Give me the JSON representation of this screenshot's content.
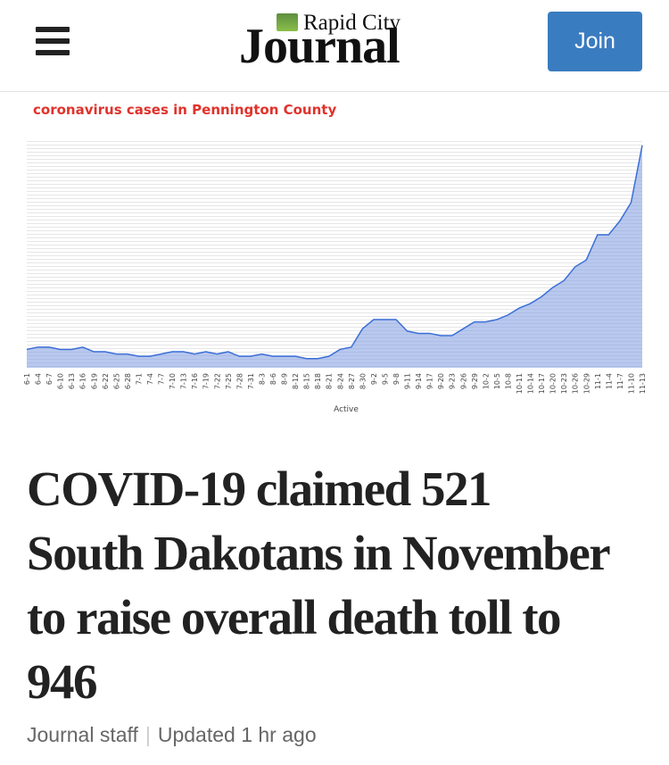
{
  "header": {
    "logo_small": "Rapid City",
    "logo_large": "Journal",
    "join": "Join"
  },
  "chart_data": {
    "type": "area",
    "title": "coronavirus cases in Pennington County",
    "xlabel": "Active",
    "color": "#7d9be0",
    "categories": [
      "6-1",
      "6-4",
      "6-7",
      "6-10",
      "6-13",
      "6-16",
      "6-19",
      "6-22",
      "6-25",
      "6-28",
      "7-1",
      "7-4",
      "7-7",
      "7-10",
      "7-13",
      "7-16",
      "7-19",
      "7-22",
      "7-25",
      "7-28",
      "7-31",
      "8-3",
      "8-6",
      "8-9",
      "8-12",
      "8-15",
      "8-18",
      "8-21",
      "8-24",
      "8-27",
      "8-30",
      "9-2",
      "9-5",
      "9-8",
      "9-11",
      "9-14",
      "9-17",
      "9-20",
      "9-23",
      "9-26",
      "9-29",
      "10-2",
      "10-5",
      "10-8",
      "10-11",
      "10-14",
      "10-17",
      "10-20",
      "10-23",
      "10-26",
      "10-29",
      "11-1",
      "11-4",
      "11-7",
      "11-10",
      "11-13"
    ],
    "values": [
      8,
      9,
      9,
      8,
      8,
      9,
      7,
      7,
      6,
      6,
      5,
      5,
      6,
      7,
      7,
      6,
      7,
      6,
      7,
      5,
      5,
      6,
      5,
      5,
      5,
      4,
      4,
      5,
      8,
      9,
      17,
      21,
      21,
      21,
      16,
      15,
      15,
      14,
      14,
      17,
      20,
      20,
      21,
      23,
      26,
      28,
      31,
      35,
      38,
      44,
      47,
      58,
      58,
      64,
      72,
      97
    ],
    "ylim": [
      0,
      100
    ]
  },
  "article": {
    "headline": "COVID-19 claimed 521 South Dakotans in November to raise overall death toll to 946",
    "author": "Journal staff",
    "updated": "Updated 1 hr ago"
  }
}
